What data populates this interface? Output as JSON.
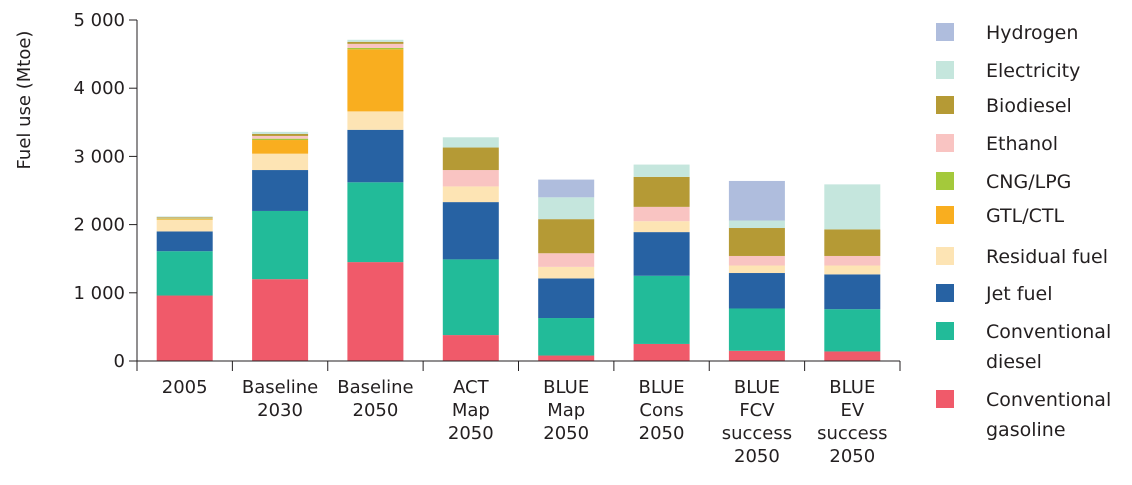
{
  "chart_data": {
    "type": "bar",
    "stacked": true,
    "title": "",
    "xlabel": "",
    "ylabel": "Fuel use (Mtoe)",
    "ylim": [
      0,
      5000
    ],
    "yticks": [
      0,
      1000,
      2000,
      3000,
      4000,
      5000
    ],
    "ytick_labels": [
      "0",
      "1 000",
      "2 000",
      "3 000",
      "4 000",
      "5 000"
    ],
    "grid": false,
    "legend_position": "right",
    "categories": [
      [
        "2005"
      ],
      [
        "Baseline",
        "2030"
      ],
      [
        "Baseline",
        "2050"
      ],
      [
        "ACT",
        "Map",
        "2050"
      ],
      [
        "BLUE",
        "Map",
        "2050"
      ],
      [
        "BLUE",
        "Cons",
        "2050"
      ],
      [
        "BLUE",
        "FCV",
        "success",
        "2050"
      ],
      [
        "BLUE",
        "EV",
        "success",
        "2050"
      ]
    ],
    "series": [
      {
        "name": "Conventional gasoline",
        "legend_lines": [
          "Conventional",
          "gasoline"
        ],
        "color": "#f05a6a",
        "values": [
          960,
          1200,
          1450,
          380,
          80,
          250,
          150,
          140
        ]
      },
      {
        "name": "Conventional diesel",
        "legend_lines": [
          "Conventional",
          "diesel"
        ],
        "color": "#22bb99",
        "values": [
          650,
          1000,
          1170,
          1110,
          550,
          1000,
          620,
          620
        ]
      },
      {
        "name": "Jet fuel",
        "legend_lines": [
          "Jet fuel"
        ],
        "color": "#2762a3",
        "values": [
          290,
          600,
          770,
          840,
          580,
          640,
          520,
          510
        ]
      },
      {
        "name": "Residual fuel",
        "legend_lines": [
          "Residual fuel"
        ],
        "color": "#fde4b4",
        "values": [
          170,
          240,
          270,
          230,
          170,
          160,
          110,
          130
        ]
      },
      {
        "name": "GTL/CTL",
        "legend_lines": [
          "GTL/CTL"
        ],
        "color": "#f9ae1f",
        "values": [
          10,
          200,
          910,
          0,
          0,
          0,
          0,
          0
        ]
      },
      {
        "name": "CNG/LPG",
        "legend_lines": [
          "CNG/LPG"
        ],
        "color": "#a4c93b",
        "values": [
          10,
          20,
          20,
          0,
          0,
          0,
          0,
          0
        ]
      },
      {
        "name": "Ethanol",
        "legend_lines": [
          "Ethanol"
        ],
        "color": "#f9c4c2",
        "values": [
          10,
          40,
          60,
          240,
          200,
          210,
          140,
          140
        ]
      },
      {
        "name": "Biodiesel",
        "legend_lines": [
          "Biodiesel"
        ],
        "color": "#b59a35",
        "values": [
          10,
          30,
          30,
          330,
          500,
          440,
          410,
          390
        ]
      },
      {
        "name": "Electricity",
        "legend_lines": [
          "Electricity"
        ],
        "color": "#c5e6dd",
        "values": [
          10,
          30,
          30,
          150,
          320,
          180,
          110,
          660
        ]
      },
      {
        "name": "Hydrogen",
        "legend_lines": [
          "Hydrogen"
        ],
        "color": "#afbddd",
        "values": [
          0,
          0,
          0,
          0,
          260,
          0,
          580,
          0
        ]
      }
    ]
  }
}
